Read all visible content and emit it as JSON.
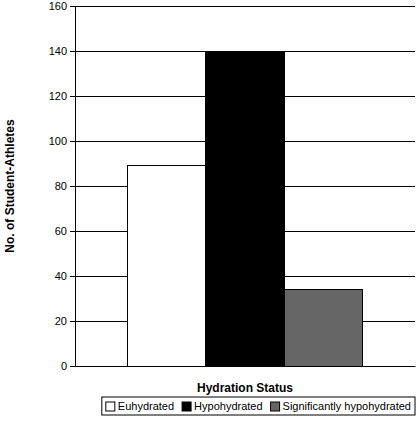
{
  "chart_data": {
    "type": "bar",
    "xlabel": "Hydration Status",
    "ylabel": "No. of Student-Athletes",
    "categories": [
      null
    ],
    "series": [
      {
        "name": "Euhydrated",
        "color": "#ffffff",
        "values": [
          89
        ]
      },
      {
        "name": "Hypohydrated",
        "color": "#000000",
        "values": [
          140
        ]
      },
      {
        "name": "Significantly hypohydrated",
        "color": "#666666",
        "values": [
          34
        ]
      }
    ],
    "ylim": [
      0,
      160
    ],
    "yticks": [
      0,
      20,
      40,
      60,
      80,
      100,
      120,
      140,
      160
    ],
    "grid": true,
    "legend": "bottom"
  }
}
